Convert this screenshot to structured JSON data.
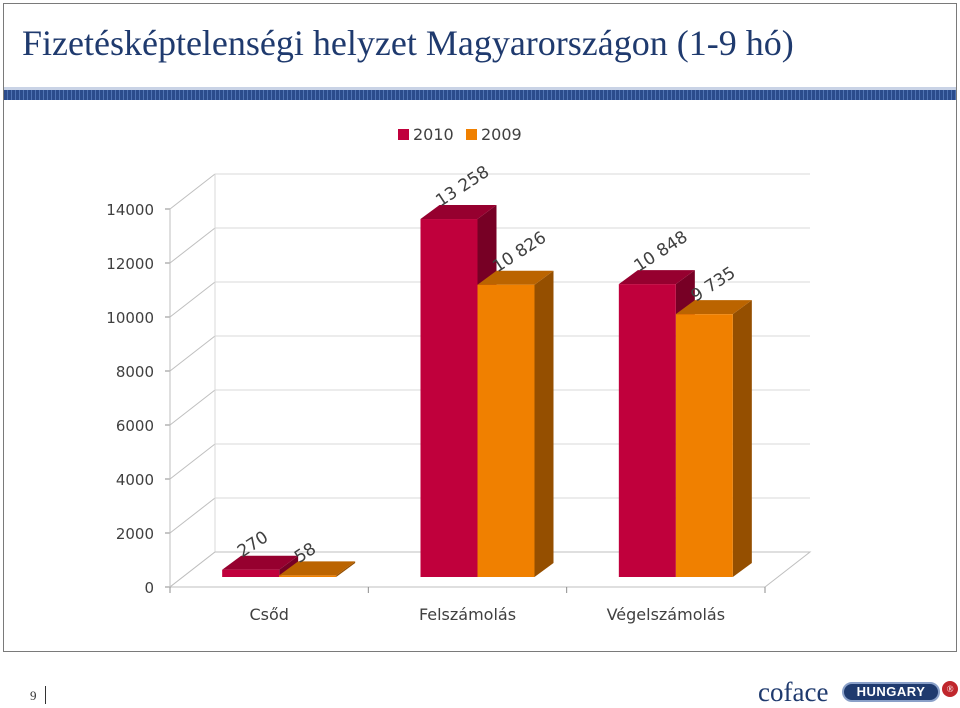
{
  "slide": {
    "title": "Fizetésképtelenségi helyzet Magyarországon (1-9 hó)",
    "page_number": "9",
    "logo_text": "coface",
    "logo_badge_text": "HUNGARY",
    "logo_mark": "®"
  },
  "colors": {
    "title": "#1f3a6e",
    "series_2010": "#c0003c",
    "series_2009": "#f08000",
    "grid": "#bfbfbf"
  },
  "chart_data": {
    "type": "bar",
    "style": "3d-clustered-column",
    "categories": [
      "Csőd",
      "Felszámolás",
      "Végelszámolás"
    ],
    "series": [
      {
        "name": "2010",
        "values": [
          270,
          13258,
          10848
        ],
        "labels": [
          "270",
          "13 258",
          "10 848"
        ],
        "color": "#c0003c"
      },
      {
        "name": "2009",
        "values": [
          58,
          10826,
          9735
        ],
        "labels": [
          "58",
          "10 826",
          "9 735"
        ],
        "color": "#f08000"
      }
    ],
    "ylim": [
      0,
      14000
    ],
    "yticks": [
      "0",
      "2000",
      "4000",
      "6000",
      "8000",
      "10000",
      "12000",
      "14000"
    ],
    "grid": true,
    "legend": "top"
  }
}
